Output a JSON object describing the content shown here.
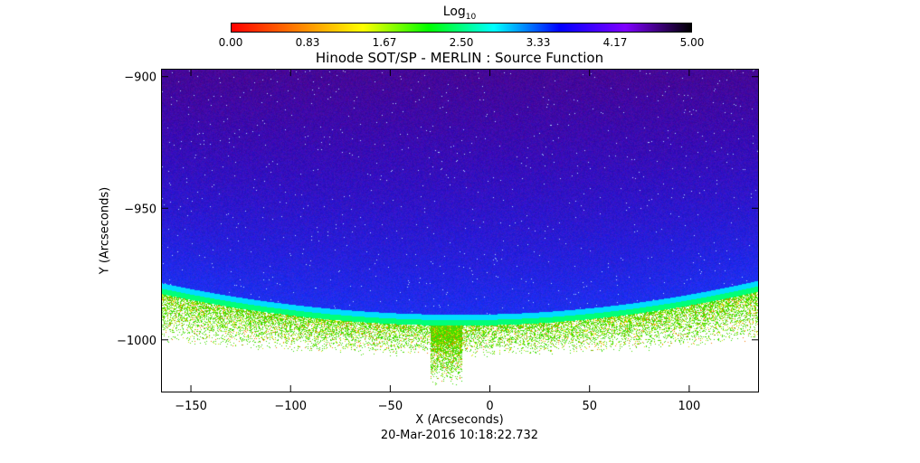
{
  "chart_data": {
    "type": "heatmap",
    "title": "Hinode SOT/SP - MERLIN : Source Function",
    "xlabel": "X (Arcseconds)",
    "ylabel": "Y (Arcseconds)",
    "xlim": [
      -165,
      135
    ],
    "ylim": [
      -1020,
      -897
    ],
    "x_ticks": [
      -150,
      -100,
      -50,
      0,
      50,
      100
    ],
    "x_tick_labels": [
      "−150",
      "−100",
      "−50",
      "0",
      "50",
      "100"
    ],
    "y_ticks": [
      -900,
      -950,
      -1000
    ],
    "y_tick_labels": [
      "−900",
      "−950",
      "−1000"
    ],
    "colorbar": {
      "label_base": "Log",
      "label_sub": "10",
      "range": [
        0.0,
        5.0
      ],
      "tick_labels": [
        "0.00",
        "0.83",
        "1.67",
        "2.50",
        "3.33",
        "4.17",
        "5.00"
      ],
      "colormap": [
        "#ff0000",
        "#ff7f00",
        "#ffff00",
        "#00ff00",
        "#00ffff",
        "#0000ff",
        "#7f00ff",
        "#000000"
      ]
    },
    "limb": {
      "x_min_y": -15,
      "y_at_center": -991,
      "y_left_edge": -979,
      "y_right_edge": -978
    },
    "region_colors": {
      "above_limb": "#3a0fa8",
      "limb_edge": "#00e0ff",
      "below_limb": "#33e000",
      "background": "#ffffff"
    },
    "timestamp": "20-Mar-2016 10:18:22.732"
  }
}
